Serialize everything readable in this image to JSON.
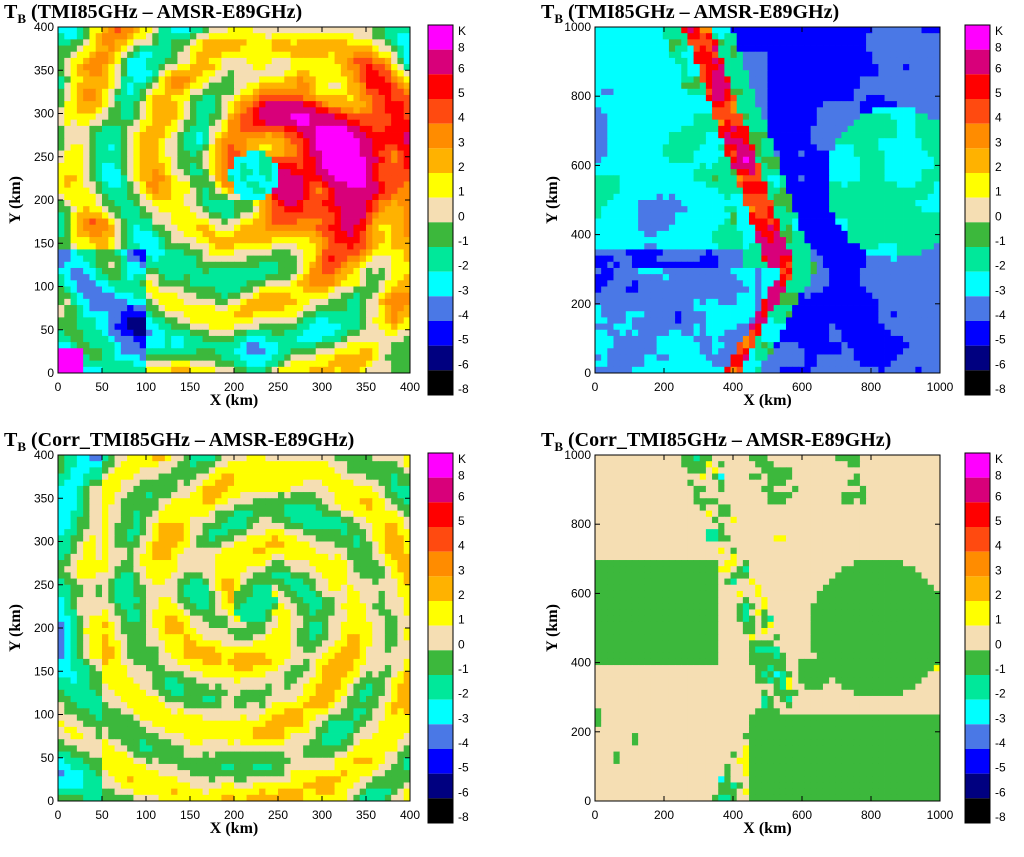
{
  "colorbar": {
    "unit": "K",
    "labels": [
      "8",
      "6",
      "5",
      "4",
      "3",
      "2",
      "1",
      "0",
      "-1",
      "-2",
      "-3",
      "-4",
      "-5",
      "-6",
      "-8"
    ],
    "colors": [
      "#ff00ff",
      "#d8007a",
      "#ff0000",
      "#ff4a10",
      "#ff8c00",
      "#ffb200",
      "#ffff00",
      "#f5deb3",
      "#3cb83c",
      "#00e89a",
      "#00ffff",
      "#4a78e6",
      "#0000ff",
      "#000080",
      "#000000"
    ]
  },
  "chart_data": [
    {
      "type": "heatmap",
      "title": {
        "main": "T",
        "sub": "B",
        "rest": " (TMI85GHz  – AMSR-E89GHz)"
      },
      "xlabel": "X (km)",
      "ylabel": "Y (km)",
      "xlim": [
        0,
        400
      ],
      "ylim": [
        0,
        400
      ],
      "xticks": [
        0,
        50,
        100,
        150,
        200,
        250,
        300,
        350,
        400
      ],
      "yticks": [
        0,
        50,
        100,
        150,
        200,
        250,
        300,
        350,
        400
      ],
      "grid": false,
      "legend": "right colorbar",
      "description_values": "hurricane eye centred near (225,225) km; positive differences up to 8 K north/east of eye, negative down to -4 K in outer bands"
    },
    {
      "type": "heatmap",
      "title": {
        "main": "T",
        "sub": "B",
        "rest": " (TMI85GHz  – AMSR-E89GHz)"
      },
      "xlabel": "X (km)",
      "ylabel": "Y (km)",
      "xlim": [
        0,
        1000
      ],
      "ylim": [
        0,
        1000
      ],
      "xticks": [
        0,
        200,
        400,
        600,
        800,
        1000
      ],
      "yticks": [
        0,
        200,
        400,
        600,
        800,
        1000
      ],
      "grid": false,
      "legend": "right colorbar"
    },
    {
      "type": "heatmap",
      "title": {
        "main": "T",
        "sub": "B",
        "rest": " (Corr_TMI85GHz  – AMSR-E89GHz)"
      },
      "xlabel": "X (km)",
      "ylabel": "Y (km)",
      "xlim": [
        0,
        400
      ],
      "ylim": [
        0,
        400
      ],
      "xticks": [
        0,
        50,
        100,
        150,
        200,
        250,
        300,
        350,
        400
      ],
      "yticks": [
        0,
        50,
        100,
        150,
        200,
        250,
        300,
        350,
        400
      ],
      "grid": false,
      "legend": "right colorbar"
    },
    {
      "type": "heatmap",
      "title": {
        "main": "T",
        "sub": "B",
        "rest": " (Corr_TMI85GHz  – AMSR-E89GHz)"
      },
      "xlabel": "X (km)",
      "ylabel": "Y (km)",
      "xlim": [
        0,
        1000
      ],
      "ylim": [
        0,
        1000
      ],
      "xticks": [
        0,
        200,
        400,
        600,
        800,
        1000
      ],
      "yticks": [
        0,
        200,
        400,
        600,
        800,
        1000
      ],
      "grid": false,
      "legend": "right colorbar"
    }
  ]
}
